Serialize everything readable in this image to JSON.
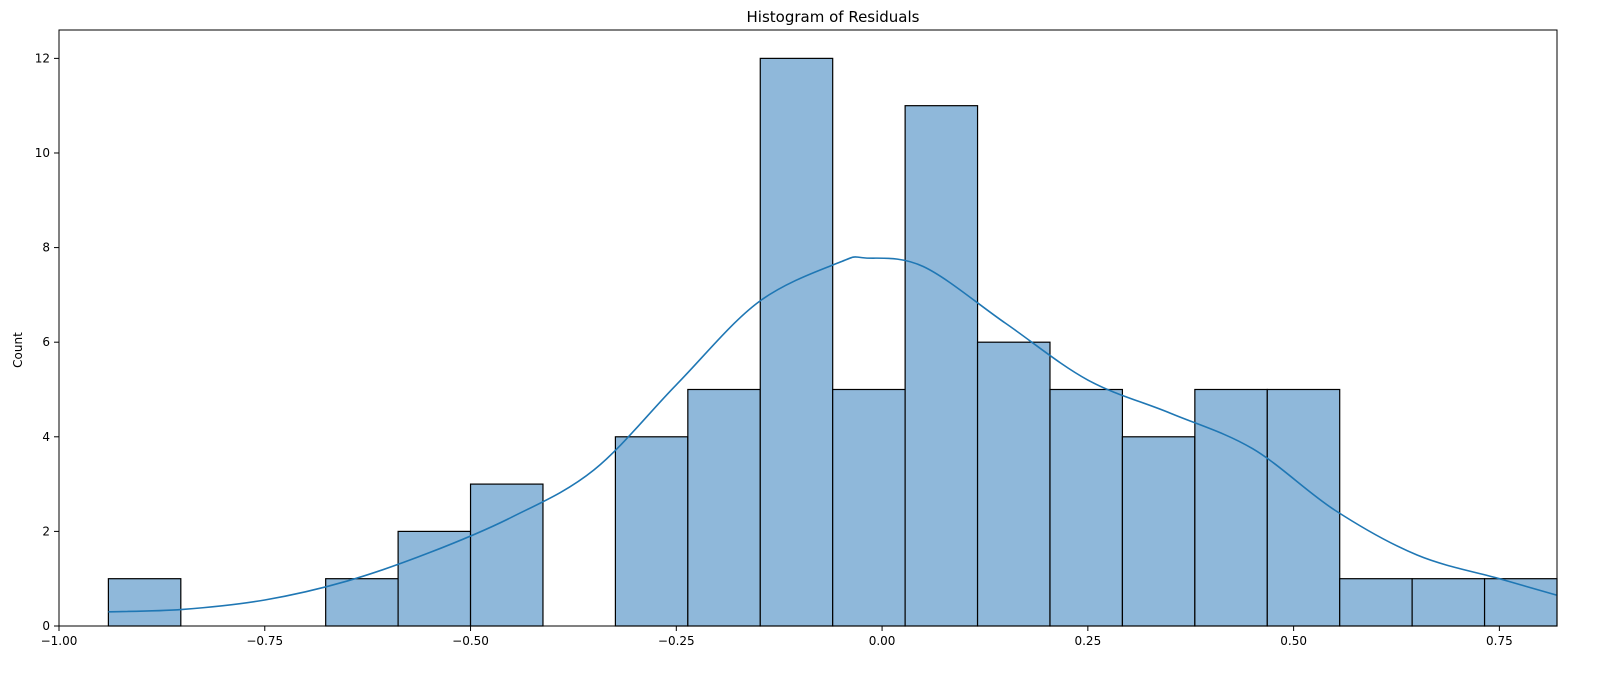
{
  "chart_data": {
    "type": "bar",
    "title": "Histogram of Residuals",
    "xlabel": "",
    "ylabel": "Count",
    "bin_edges": [
      -0.94,
      -0.852,
      -0.764,
      -0.676,
      -0.588,
      -0.5,
      -0.412,
      -0.324,
      -0.236,
      -0.148,
      -0.06,
      0.028,
      0.116,
      0.204,
      0.292,
      0.38,
      0.468,
      0.556,
      0.644,
      0.732,
      0.82
    ],
    "values": [
      1,
      0,
      0,
      1,
      2,
      3,
      0,
      4,
      5,
      12,
      5,
      11,
      6,
      5,
      4,
      5,
      5,
      1,
      1,
      1
    ],
    "kde": {
      "x": [
        -0.94,
        -0.85,
        -0.75,
        -0.65,
        -0.55,
        -0.45,
        -0.35,
        -0.25,
        -0.15,
        -0.05,
        -0.02,
        0.05,
        0.15,
        0.25,
        0.35,
        0.45,
        0.55,
        0.65,
        0.75,
        0.82
      ],
      "y": [
        0.3,
        0.35,
        0.55,
        0.95,
        1.55,
        2.3,
        3.3,
        5.1,
        6.85,
        7.7,
        7.78,
        7.6,
        6.4,
        5.2,
        4.5,
        3.75,
        2.45,
        1.5,
        1.0,
        0.65
      ]
    },
    "xlim": [
      -1.0,
      0.82
    ],
    "ylim": [
      0,
      12.6
    ],
    "xticks": [
      -1.0,
      -0.75,
      -0.5,
      -0.25,
      0.0,
      0.25,
      0.5,
      0.75
    ],
    "xtick_labels": [
      "−1.00",
      "−0.75",
      "−0.50",
      "−0.25",
      "0.00",
      "0.25",
      "0.50",
      "0.75"
    ],
    "yticks": [
      0,
      2,
      4,
      6,
      8,
      10,
      12
    ],
    "ytick_labels": [
      "0",
      "2",
      "4",
      "6",
      "8",
      "10",
      "12"
    ],
    "grid": false,
    "colors": {
      "bar_fill": "#8fb8da",
      "bar_edge": "#000000",
      "kde_line": "#1f77b4"
    }
  }
}
